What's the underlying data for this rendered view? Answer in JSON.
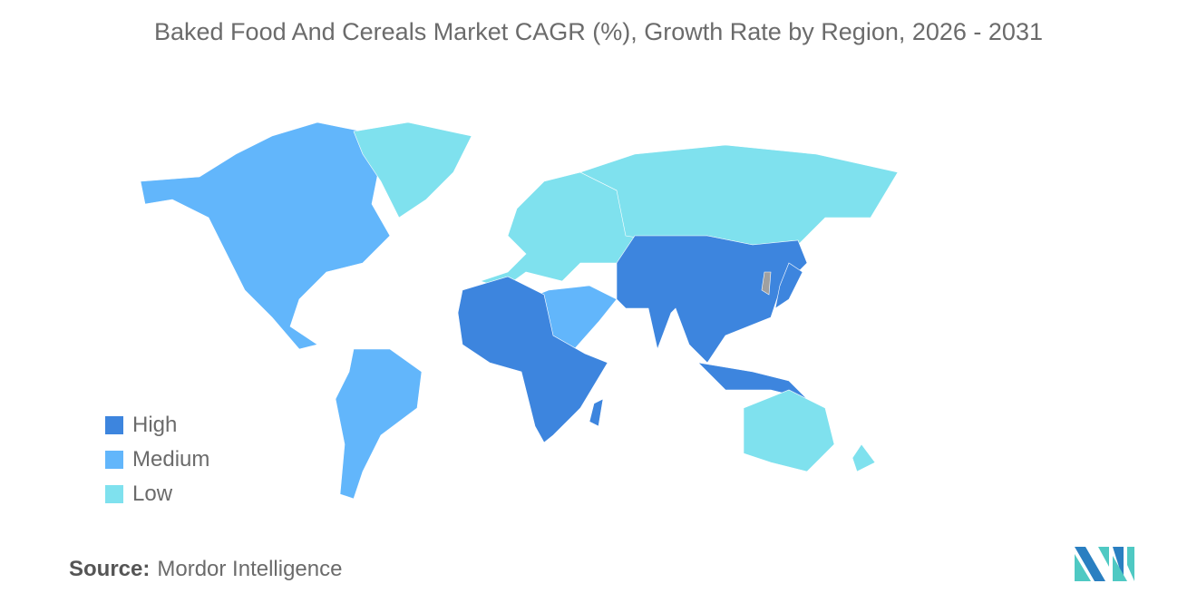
{
  "title": "Baked Food And Cereals Market CAGR (%), Growth Rate by Region, 2026 - 2031",
  "legend": [
    {
      "label": "High",
      "color": "#3d85de"
    },
    {
      "label": "Medium",
      "color": "#62b6fb"
    },
    {
      "label": "Low",
      "color": "#7fe1ee"
    }
  ],
  "no_data_color": "#a0a0a0",
  "map": {
    "regions": [
      {
        "id": "north-america",
        "level": "Medium"
      },
      {
        "id": "greenland",
        "level": "Low"
      },
      {
        "id": "south-america",
        "level": "Medium"
      },
      {
        "id": "europe",
        "level": "Low"
      },
      {
        "id": "russia",
        "level": "Low"
      },
      {
        "id": "middle-east",
        "level": "Medium"
      },
      {
        "id": "africa",
        "level": "High"
      },
      {
        "id": "madagascar",
        "level": "High"
      },
      {
        "id": "asia",
        "level": "High"
      },
      {
        "id": "southeast-asia-islands",
        "level": "High"
      },
      {
        "id": "japan",
        "level": "High"
      },
      {
        "id": "australia",
        "level": "Low"
      },
      {
        "id": "new-zealand",
        "level": "Low"
      },
      {
        "id": "korea",
        "level": "No data"
      }
    ]
  },
  "source": {
    "label": "Source:",
    "value": "Mordor Intelligence"
  },
  "logo": {
    "text": "Mordor Intelligence",
    "colors": [
      "#2a7fc1",
      "#4fc9c3"
    ]
  }
}
